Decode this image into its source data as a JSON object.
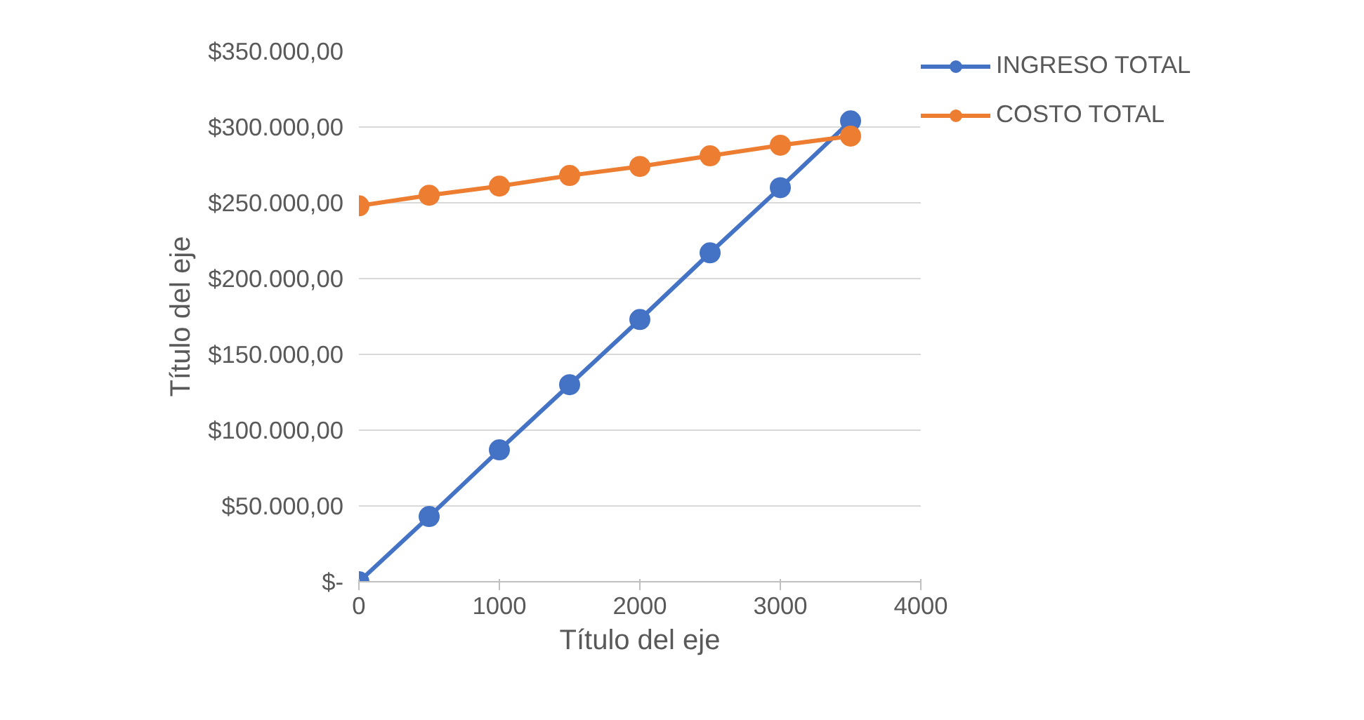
{
  "chart_data": {
    "type": "line",
    "xlabel": "Título del eje",
    "ylabel": "Título del eje",
    "x": [
      0,
      500,
      1000,
      1500,
      2000,
      2500,
      3000,
      3500
    ],
    "series": [
      {
        "name": "INGRESO TOTAL",
        "color": "#4472c4",
        "values": [
          0,
          43000,
          87000,
          130000,
          173000,
          217000,
          260000,
          304000
        ]
      },
      {
        "name": "COSTO TOTAL",
        "color": "#ed7d31",
        "values": [
          248000,
          255000,
          261000,
          268000,
          274000,
          281000,
          288000,
          294000
        ]
      }
    ],
    "xlim": [
      0,
      4000
    ],
    "xticks": [
      0,
      1000,
      2000,
      3000,
      4000
    ],
    "ylim": [
      0,
      350000
    ],
    "yticks": [
      {
        "value": 0,
        "label": "$-"
      },
      {
        "value": 50000,
        "label": "$50.000,00"
      },
      {
        "value": 100000,
        "label": "$100.000,00"
      },
      {
        "value": 150000,
        "label": "$150.000,00"
      },
      {
        "value": 200000,
        "label": "$200.000,00"
      },
      {
        "value": 250000,
        "label": "$250.000,00"
      },
      {
        "value": 300000,
        "label": "$300.000,00"
      },
      {
        "value": 350000,
        "label": "$350.000,00"
      }
    ],
    "grid": "y",
    "legend": "right",
    "marker": "circle",
    "line_style": "solid"
  }
}
